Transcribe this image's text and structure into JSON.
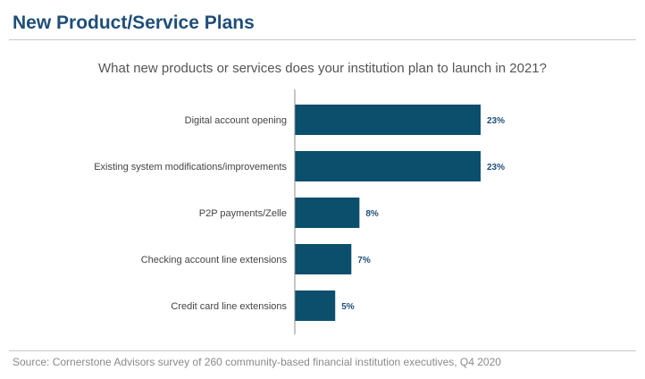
{
  "header": {
    "title": "New Product/Service Plans"
  },
  "footer": {
    "source": "Source: Cornerstone Advisors survey of 260 community-based financial institution executives, Q4 2020"
  },
  "colors": {
    "title": "#1f4e79",
    "bar": "#0b4f6c",
    "value_label": "#1f4e79",
    "category_label": "#444444",
    "axis": "#8c8c8c"
  },
  "chart_data": {
    "type": "bar",
    "orientation": "horizontal",
    "title": "What new products or services does your institution plan to launch in 2021?",
    "categories": [
      "Digital account opening",
      "Existing system modifications/improvements",
      "P2P payments/Zelle",
      "Checking account line extensions",
      "Credit card line extensions"
    ],
    "values": [
      23,
      23,
      8,
      7,
      5
    ],
    "value_labels": [
      "23%",
      "23%",
      "8%",
      "7%",
      "5%"
    ],
    "xlim": [
      0,
      25
    ],
    "grid": false,
    "legend": "none"
  }
}
